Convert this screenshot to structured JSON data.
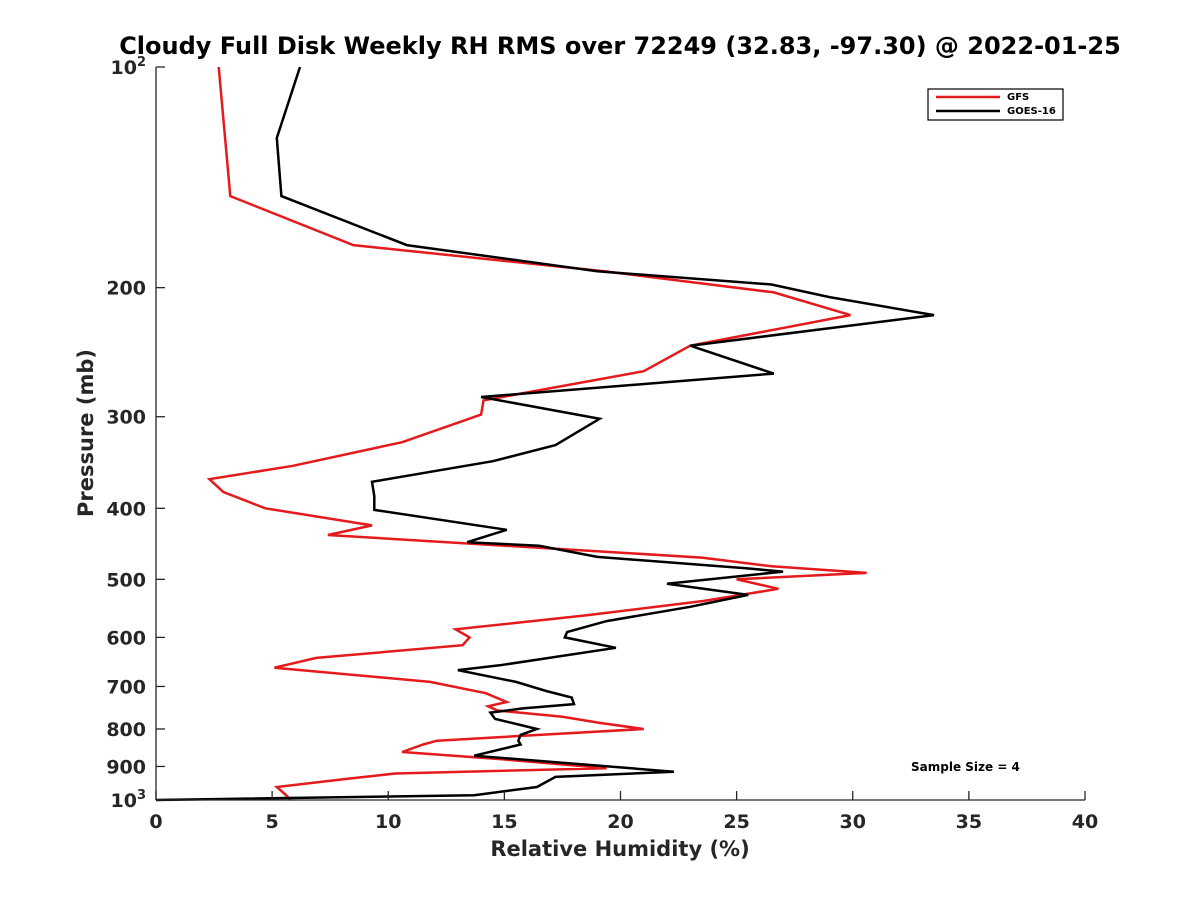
{
  "chart_data": {
    "type": "line",
    "title": "Cloudy Full Disk Weekly RH RMS over 72249 (32.83, -97.30) @ 2022-01-25",
    "xlabel": "Relative Humidity (%)",
    "ylabel": "Pressure (mb)",
    "xlim": [
      0,
      40
    ],
    "ylim": [
      100,
      1000
    ],
    "yscale": "log",
    "y_reversed": true,
    "grid": false,
    "xticks": [
      0,
      5,
      10,
      15,
      20,
      25,
      30,
      35,
      40
    ],
    "xtick_labels": [
      "0",
      "5",
      "10",
      "15",
      "20",
      "25",
      "30",
      "35",
      "40"
    ],
    "yticks": [
      {
        "value": 100,
        "base": "10",
        "exp": "2"
      },
      {
        "value": 200,
        "label": "200"
      },
      {
        "value": 300,
        "label": "300"
      },
      {
        "value": 400,
        "label": "400"
      },
      {
        "value": 500,
        "label": "500"
      },
      {
        "value": 600,
        "label": "600"
      },
      {
        "value": 700,
        "label": "700"
      },
      {
        "value": 800,
        "label": "800"
      },
      {
        "value": 900,
        "label": "900"
      },
      {
        "value": 1000,
        "base": "10",
        "exp": "3"
      }
    ],
    "legend": {
      "position": "top-right",
      "entries": [
        "GFS",
        "GOES-16"
      ]
    },
    "annotation": "Sample Size = 4",
    "series": [
      {
        "name": "GFS",
        "color": "#e41a1c",
        "points": [
          [
            2.7,
            100
          ],
          [
            3.2,
            150
          ],
          [
            8.5,
            175
          ],
          [
            19.3,
            190
          ],
          [
            26.6,
            203
          ],
          [
            29.9,
            218
          ],
          [
            23.0,
            240
          ],
          [
            21.0,
            260
          ],
          [
            14.1,
            285
          ],
          [
            14.0,
            298
          ],
          [
            10.6,
            325
          ],
          [
            5.9,
            350
          ],
          [
            2.3,
            365
          ],
          [
            2.9,
            380
          ],
          [
            4.7,
            400
          ],
          [
            9.3,
            422
          ],
          [
            7.4,
            435
          ],
          [
            23.5,
            467
          ],
          [
            26.5,
            480
          ],
          [
            30.6,
            490
          ],
          [
            25.0,
            500
          ],
          [
            26.8,
            515
          ],
          [
            23.6,
            535
          ],
          [
            18.5,
            560
          ],
          [
            12.9,
            585
          ],
          [
            13.5,
            600
          ],
          [
            13.2,
            615
          ],
          [
            6.9,
            640
          ],
          [
            5.1,
            660
          ],
          [
            11.8,
            690
          ],
          [
            14.2,
            715
          ],
          [
            15.1,
            735
          ],
          [
            14.3,
            745
          ],
          [
            14.7,
            755
          ],
          [
            17.5,
            770
          ],
          [
            19.1,
            785
          ],
          [
            21.0,
            800
          ],
          [
            12.1,
            830
          ],
          [
            11.5,
            840
          ],
          [
            10.6,
            860
          ],
          [
            14.9,
            880
          ],
          [
            19.4,
            905
          ],
          [
            10.3,
            920
          ],
          [
            8.3,
            935
          ],
          [
            5.2,
            960
          ],
          [
            5.6,
            985
          ],
          [
            5.8,
            1000
          ]
        ]
      },
      {
        "name": "GOES-16",
        "color": "#000000",
        "points": [
          [
            6.2,
            100
          ],
          [
            5.2,
            125
          ],
          [
            5.4,
            150
          ],
          [
            10.8,
            175
          ],
          [
            19.0,
            190
          ],
          [
            26.5,
            198
          ],
          [
            29.0,
            206
          ],
          [
            33.5,
            218
          ],
          [
            23.0,
            240
          ],
          [
            26.6,
            262
          ],
          [
            14.0,
            282
          ],
          [
            19.1,
            302
          ],
          [
            17.2,
            328
          ],
          [
            14.5,
            345
          ],
          [
            9.3,
            368
          ],
          [
            9.4,
            385
          ],
          [
            9.4,
            402
          ],
          [
            15.1,
            428
          ],
          [
            13.4,
            445
          ],
          [
            16.5,
            450
          ],
          [
            19.0,
            466
          ],
          [
            25.4,
            483
          ],
          [
            27.0,
            488
          ],
          [
            22.0,
            507
          ],
          [
            25.5,
            525
          ],
          [
            23.0,
            545
          ],
          [
            19.4,
            570
          ],
          [
            17.7,
            590
          ],
          [
            17.6,
            600
          ],
          [
            19.8,
            620
          ],
          [
            14.8,
            655
          ],
          [
            13.0,
            665
          ],
          [
            15.5,
            690
          ],
          [
            16.8,
            710
          ],
          [
            17.9,
            725
          ],
          [
            18.0,
            740
          ],
          [
            15.8,
            750
          ],
          [
            14.4,
            760
          ],
          [
            14.6,
            775
          ],
          [
            15.7,
            790
          ],
          [
            16.4,
            800
          ],
          [
            15.7,
            815
          ],
          [
            15.6,
            830
          ],
          [
            15.7,
            840
          ],
          [
            13.7,
            870
          ],
          [
            22.3,
            915
          ],
          [
            17.2,
            930
          ],
          [
            16.4,
            960
          ],
          [
            13.7,
            985
          ],
          [
            0.0,
            1000
          ]
        ]
      }
    ]
  }
}
